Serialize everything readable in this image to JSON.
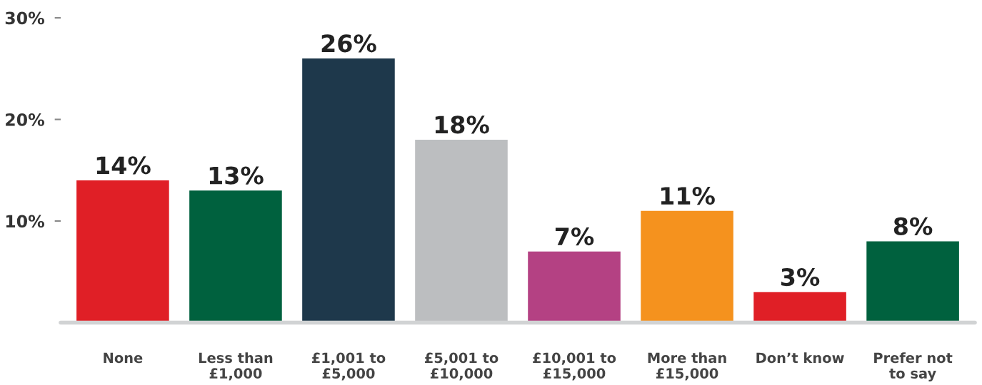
{
  "chart_data": {
    "type": "bar",
    "categories": [
      "None",
      "Less than\n£1,000",
      "£1,001 to\n£5,000",
      "£5,001 to\n£10,000",
      "£10,001 to\n£15,000",
      "More than\n£15,000",
      "Don’t know",
      "Prefer not\nto say"
    ],
    "values": [
      14,
      13,
      26,
      18,
      7,
      11,
      3,
      8
    ],
    "colors": [
      "#e01f26",
      "#00613e",
      "#1e384b",
      "#bcbec0",
      "#b44183",
      "#f5921e",
      "#e01f26",
      "#00613e"
    ],
    "value_labels": [
      "14%",
      "13%",
      "26%",
      "18%",
      "7%",
      "11%",
      "3%",
      "8%"
    ],
    "ylim": [
      0,
      30
    ],
    "yticks": [
      {
        "value": 10,
        "label": "10%"
      },
      {
        "value": 20,
        "label": "20%"
      },
      {
        "value": 30,
        "label": "30%"
      }
    ],
    "grid": false,
    "legend": false
  }
}
